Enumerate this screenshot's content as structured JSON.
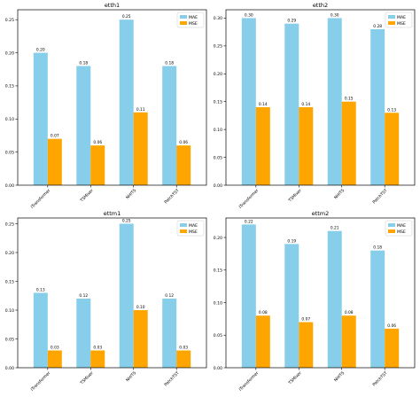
{
  "colors": {
    "mae": "#87ceeb",
    "mse": "#ffa500",
    "axis": "#000000"
  },
  "chart_data": [
    {
      "type": "bar",
      "title": "etth1",
      "categories": [
        "iTransformer",
        "TSMixer",
        "NHITS",
        "PatchTST"
      ],
      "series": [
        {
          "name": "MAE",
          "values": [
            0.2,
            0.18,
            0.25,
            0.18
          ],
          "labels": [
            "0.20",
            "0.18",
            "0.25",
            "0.18"
          ]
        },
        {
          "name": "MSE",
          "values": [
            0.07,
            0.06,
            0.11,
            0.06
          ],
          "labels": [
            "0.07",
            "0.06",
            "0.11",
            "0.06"
          ]
        }
      ],
      "ylim": [
        0,
        0.265
      ],
      "yticks": [
        "0.00",
        "0.05",
        "0.10",
        "0.15",
        "0.20",
        "0.25"
      ],
      "legend": "top-right",
      "xlabel": "",
      "ylabel": ""
    },
    {
      "type": "bar",
      "title": "etth2",
      "categories": [
        "iTransformer",
        "TSMixer",
        "NHITS",
        "PatchTST"
      ],
      "series": [
        {
          "name": "MAE",
          "values": [
            0.3,
            0.29,
            0.3,
            0.28
          ],
          "labels": [
            "0.30",
            "0.29",
            "0.30",
            "0.28"
          ]
        },
        {
          "name": "MSE",
          "values": [
            0.14,
            0.14,
            0.15,
            0.13
          ],
          "labels": [
            "0.14",
            "0.14",
            "0.15",
            "0.13"
          ]
        }
      ],
      "ylim": [
        0,
        0.315
      ],
      "yticks": [
        "0.00",
        "0.05",
        "0.10",
        "0.15",
        "0.20",
        "0.25",
        "0.30"
      ],
      "legend": "top-right",
      "xlabel": "",
      "ylabel": ""
    },
    {
      "type": "bar",
      "title": "ettm1",
      "categories": [
        "iTransformer",
        "TSMixer",
        "NHITS",
        "PatchTST"
      ],
      "series": [
        {
          "name": "MAE",
          "values": [
            0.13,
            0.12,
            0.25,
            0.12
          ],
          "labels": [
            "0.13",
            "0.12",
            "0.25",
            "0.12"
          ]
        },
        {
          "name": "MSE",
          "values": [
            0.03,
            0.03,
            0.1,
            0.03
          ],
          "labels": [
            "0.03",
            "0.03",
            "0.10",
            "0.03"
          ]
        }
      ],
      "ylim": [
        0,
        0.26
      ],
      "yticks": [
        "0.00",
        "0.05",
        "0.10",
        "0.15",
        "0.20",
        "0.25"
      ],
      "legend": "top-right",
      "xlabel": "",
      "ylabel": ""
    },
    {
      "type": "bar",
      "title": "ettm2",
      "categories": [
        "iTransformer",
        "TSMixer",
        "NHITS",
        "PatchTST"
      ],
      "series": [
        {
          "name": "MAE",
          "values": [
            0.22,
            0.19,
            0.21,
            0.18
          ],
          "labels": [
            "0.22",
            "0.19",
            "0.21",
            "0.18"
          ]
        },
        {
          "name": "MSE",
          "values": [
            0.08,
            0.07,
            0.08,
            0.06
          ],
          "labels": [
            "0.08",
            "0.07",
            "0.08",
            "0.06"
          ]
        }
      ],
      "ylim": [
        0,
        0.23
      ],
      "yticks": [
        "0.00",
        "0.05",
        "0.10",
        "0.15",
        "0.20"
      ],
      "legend": "top-right",
      "xlabel": "",
      "ylabel": ""
    }
  ]
}
